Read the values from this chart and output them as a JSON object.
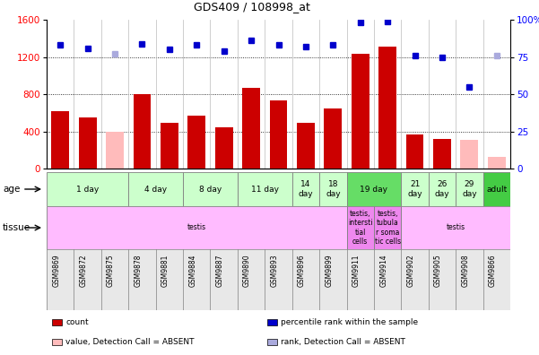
{
  "title": "GDS409 / 108998_at",
  "samples": [
    "GSM9869",
    "GSM9872",
    "GSM9875",
    "GSM9878",
    "GSM9881",
    "GSM9884",
    "GSM9887",
    "GSM9890",
    "GSM9893",
    "GSM9896",
    "GSM9899",
    "GSM9911",
    "GSM9914",
    "GSM9902",
    "GSM9905",
    "GSM9908",
    "GSM9866"
  ],
  "bar_values": [
    620,
    550,
    400,
    800,
    490,
    570,
    440,
    870,
    730,
    490,
    650,
    1230,
    1310,
    370,
    320,
    310,
    130
  ],
  "bar_absent": [
    false,
    false,
    true,
    false,
    false,
    false,
    false,
    false,
    false,
    false,
    false,
    false,
    false,
    false,
    false,
    true,
    true
  ],
  "dot_values": [
    83,
    81,
    77,
    84,
    80,
    83,
    79,
    86,
    83,
    82,
    83,
    98,
    99,
    76,
    75,
    55,
    76
  ],
  "dot_absent": [
    false,
    false,
    true,
    false,
    false,
    false,
    false,
    false,
    false,
    false,
    false,
    false,
    false,
    false,
    false,
    false,
    true
  ],
  "bar_color_present": "#cc0000",
  "bar_color_absent": "#ffbbbb",
  "dot_color_present": "#0000cc",
  "dot_color_absent": "#aaaadd",
  "ylim_left": [
    0,
    1600
  ],
  "ylim_right": [
    0,
    100
  ],
  "yticks_left": [
    0,
    400,
    800,
    1200,
    1600
  ],
  "yticks_right": [
    0,
    25,
    50,
    75,
    100
  ],
  "age_groups": [
    {
      "label": "1 day",
      "start": 0,
      "end": 3,
      "color": "#ccffcc"
    },
    {
      "label": "4 day",
      "start": 3,
      "end": 5,
      "color": "#ccffcc"
    },
    {
      "label": "8 day",
      "start": 5,
      "end": 7,
      "color": "#ccffcc"
    },
    {
      "label": "11 day",
      "start": 7,
      "end": 9,
      "color": "#ccffcc"
    },
    {
      "label": "14\nday",
      "start": 9,
      "end": 10,
      "color": "#ccffcc"
    },
    {
      "label": "18\nday",
      "start": 10,
      "end": 11,
      "color": "#ccffcc"
    },
    {
      "label": "19 day",
      "start": 11,
      "end": 13,
      "color": "#66dd66"
    },
    {
      "label": "21\nday",
      "start": 13,
      "end": 14,
      "color": "#ccffcc"
    },
    {
      "label": "26\nday",
      "start": 14,
      "end": 15,
      "color": "#ccffcc"
    },
    {
      "label": "29\nday",
      "start": 15,
      "end": 16,
      "color": "#ccffcc"
    },
    {
      "label": "adult",
      "start": 16,
      "end": 17,
      "color": "#44cc44"
    }
  ],
  "tissue_groups": [
    {
      "label": "testis",
      "start": 0,
      "end": 11,
      "color": "#ffbbff"
    },
    {
      "label": "testis,\nintersti\ntial\ncells",
      "start": 11,
      "end": 12,
      "color": "#ee88ee"
    },
    {
      "label": "testis,\ntubula\nr soma\ntic cells",
      "start": 12,
      "end": 13,
      "color": "#ee88ee"
    },
    {
      "label": "testis",
      "start": 13,
      "end": 17,
      "color": "#ffbbff"
    }
  ],
  "legend_items": [
    {
      "label": "count",
      "color": "#cc0000"
    },
    {
      "label": "percentile rank within the sample",
      "color": "#0000cc"
    },
    {
      "label": "value, Detection Call = ABSENT",
      "color": "#ffbbbb"
    },
    {
      "label": "rank, Detection Call = ABSENT",
      "color": "#aaaadd"
    }
  ],
  "fig_width": 6.01,
  "fig_height": 3.96,
  "dpi": 100
}
